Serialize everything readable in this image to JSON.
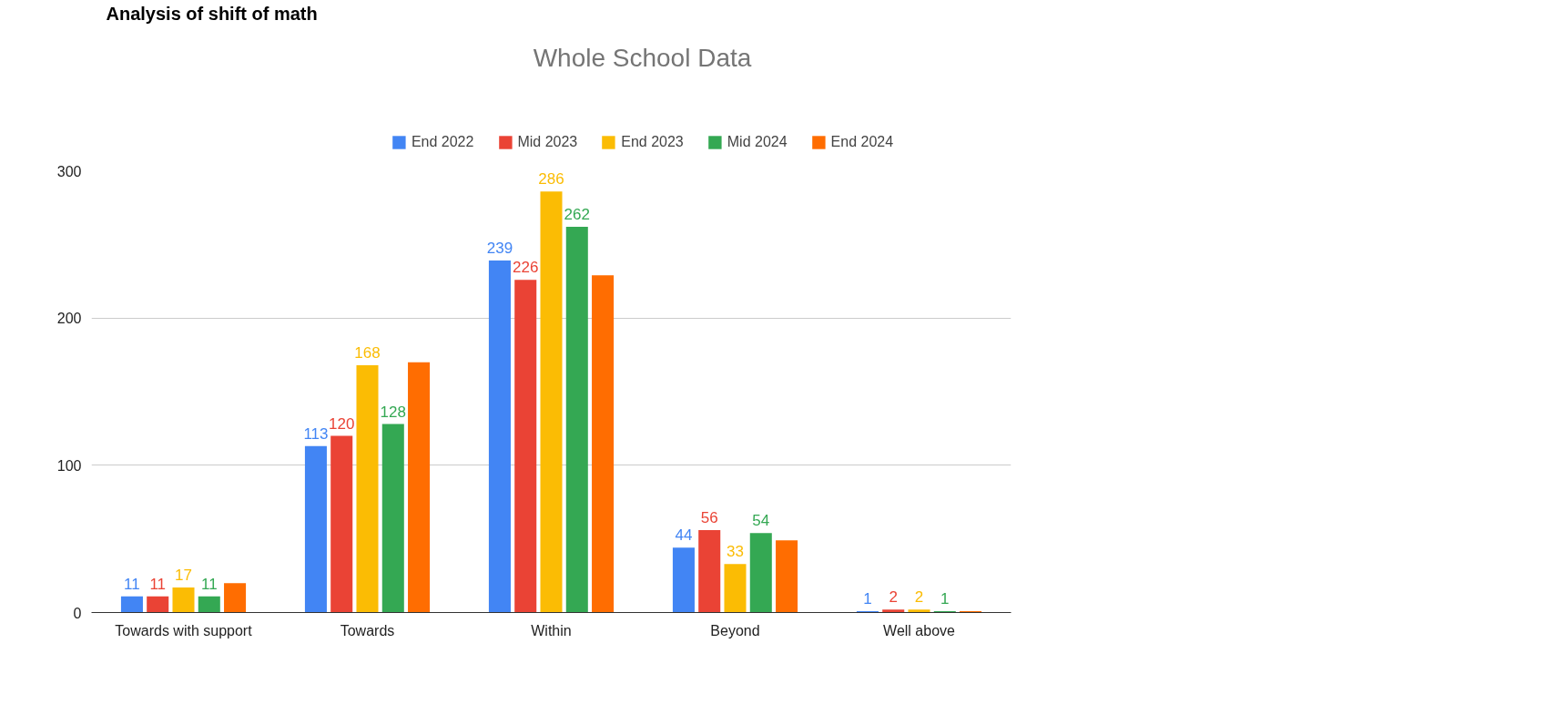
{
  "chart_data": {
    "type": "bar",
    "title": "Analysis of shift of math",
    "subtitle": "Whole School Data",
    "categories": [
      "Towards with support",
      "Towards",
      "Within",
      "Beyond",
      "Well above"
    ],
    "series": [
      {
        "name": "End 2022",
        "color": "#4285f4",
        "values": [
          11,
          113,
          239,
          44,
          1
        ],
        "value_labels": [
          "11",
          "113",
          "239",
          "44",
          "1"
        ]
      },
      {
        "name": "Mid 2023",
        "color": "#ea4335",
        "values": [
          11,
          120,
          226,
          56,
          2
        ],
        "value_labels": [
          "11",
          "120",
          "226",
          "56",
          "2"
        ]
      },
      {
        "name": "End 2023",
        "color": "#fbbc04",
        "values": [
          17,
          168,
          286,
          33,
          2
        ],
        "value_labels": [
          "17",
          "168",
          "286",
          "33",
          "2"
        ]
      },
      {
        "name": "Mid 2024",
        "color": "#34a853",
        "values": [
          11,
          128,
          262,
          54,
          1
        ],
        "value_labels": [
          "11",
          "128",
          "262",
          "54",
          "1"
        ]
      },
      {
        "name": "End 2024",
        "color": "#ff6d01",
        "values": [
          20,
          170,
          229,
          49,
          1
        ]
      }
    ],
    "ylim": [
      0,
      300
    ],
    "yticks": [
      0,
      100,
      200,
      300
    ],
    "grid": "y",
    "legend": "top"
  }
}
